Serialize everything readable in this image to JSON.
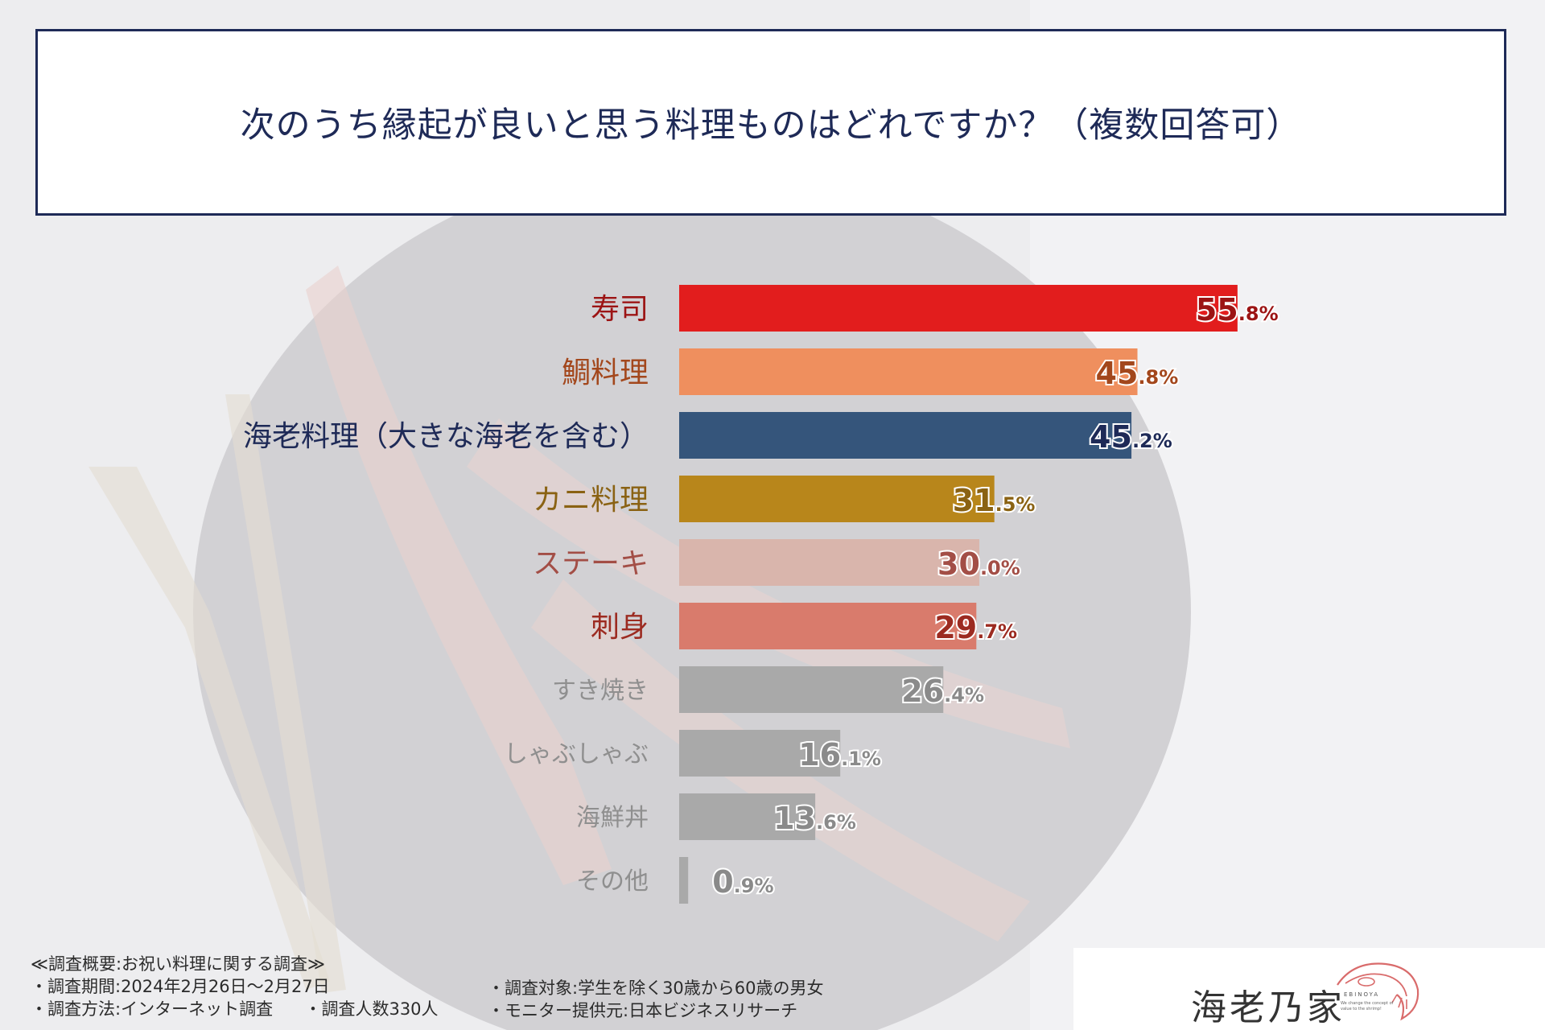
{
  "title": "次のうち縁起が良いと思う料理ものはどれですか？（複数回答可）",
  "chart_data": {
    "type": "bar",
    "orientation": "horizontal",
    "title": "次のうち縁起が良いと思う料理ものはどれですか？（複数回答可）",
    "unit": "%",
    "xlim": [
      0,
      70
    ],
    "grid": false,
    "legend": "none",
    "categories": [
      "寿司",
      "鯛料理",
      "海老料理（大きな海老を含む）",
      "カニ料理",
      "ステーキ",
      "刺身",
      "すき焼き",
      "しゃぶしゃぶ",
      "海鮮丼",
      "その他"
    ],
    "values": [
      55.8,
      45.8,
      45.2,
      31.5,
      30.0,
      29.7,
      26.4,
      16.1,
      13.6,
      0.9
    ],
    "value_labels": [
      "55.8%",
      "45.8%",
      "45.2%",
      "31.5%",
      "30.0%",
      "29.7%",
      "26.4%",
      "16.1%",
      "13.6%",
      "0.9%"
    ],
    "colors": [
      "#e21d1d",
      "#ef8f5e",
      "#35557b",
      "#b8861b",
      "#d9b5ac",
      "#d97b6c",
      "#a9a9a9",
      "#a9a9a9",
      "#a9a9a9",
      "#a9a9a9"
    ],
    "label_colors": [
      "#9c1414",
      "#a3471c",
      "#1e2a57",
      "#8a6213",
      "#a34e46",
      "#9c2b21",
      "#8f8f8f",
      "#8f8f8f",
      "#8f8f8f",
      "#8f8f8f"
    ],
    "highlight_count": 6
  },
  "footer": {
    "heading": "≪調査概要:お祝い料理に関する調査≫",
    "period": "・調査期間:2024年2月26日〜2月27日",
    "method": "・調査方法:インターネット調査",
    "count": "・調査人数330人",
    "target": "・調査対象:学生を除く30歳から60歳の男女",
    "monitor": "・モニター提供元:日本ビジネスリサーチ"
  },
  "logo": {
    "name": "海老乃家",
    "roman": "EBINOYA",
    "tagline_1": "We change the concept of",
    "tagline_2": "value to the shrimp!"
  }
}
